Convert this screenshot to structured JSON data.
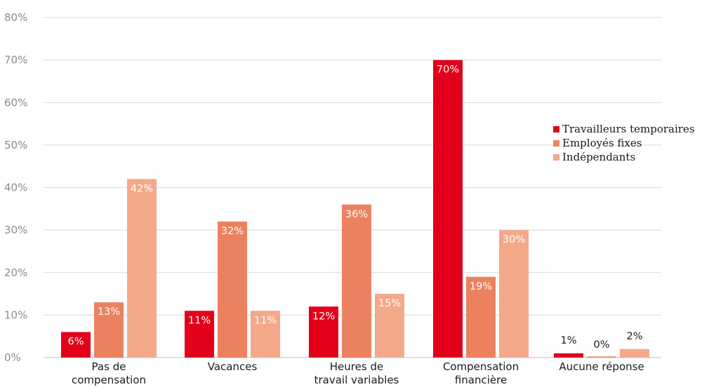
{
  "chart_data": {
    "type": "bar",
    "title": "",
    "xlabel": "",
    "ylabel": "",
    "categories": [
      [
        "Pas de",
        "compensation"
      ],
      [
        "Vacances"
      ],
      [
        "Heures de",
        "travail variables"
      ],
      [
        "Compensation",
        "financière"
      ],
      [
        "Aucune réponse"
      ]
    ],
    "series": [
      {
        "name": "Travailleurs temporaires",
        "color": "#e2001a",
        "values": [
          6,
          11,
          12,
          70,
          1
        ],
        "labels": [
          "6%",
          "11%",
          "12%",
          "70%",
          "1%"
        ]
      },
      {
        "name": "Employés fixes",
        "color": "#ec8160",
        "values": [
          13,
          32,
          36,
          19,
          0
        ],
        "labels": [
          "13%",
          "32%",
          "36%",
          "19%",
          "0%"
        ]
      },
      {
        "name": "Indépendants",
        "color": "#f4a98a",
        "values": [
          42,
          11,
          15,
          30,
          2
        ],
        "labels": [
          "42%",
          "11%",
          "15%",
          "30%",
          "2%"
        ]
      }
    ],
    "ylim": [
      0,
      80
    ],
    "yticks": [
      0,
      10,
      20,
      30,
      40,
      50,
      60,
      70,
      80
    ],
    "ytick_labels": [
      "0%",
      "10%",
      "20%",
      "30%",
      "40%",
      "50%",
      "60%",
      "70%",
      "80%"
    ],
    "grid": true,
    "legend_position": "right"
  }
}
